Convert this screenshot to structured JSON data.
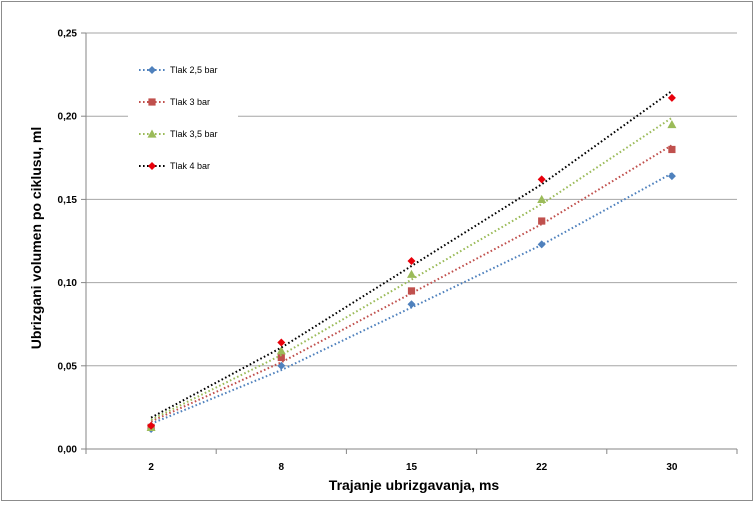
{
  "chart_data": {
    "type": "line",
    "title": "",
    "xlabel": "Trajanje ubrizgavanja, ms",
    "ylabel": "Ubrizgani volumen po ciklusu, ml",
    "categories": [
      "2",
      "8",
      "15",
      "22",
      "30"
    ],
    "x_numeric": [
      2,
      8,
      15,
      22,
      30
    ],
    "ylim": [
      0,
      0.25
    ],
    "yticks": [
      0,
      0.05,
      0.1,
      0.15,
      0.2,
      0.25
    ],
    "ytick_labels": [
      "0,00",
      "0,05",
      "0,10",
      "0,15",
      "0,20",
      "0,25"
    ],
    "grid": "horizontal",
    "legend_position": "top-left",
    "series": [
      {
        "name": "Tlak 2,5 bar",
        "color": "#4F81BD",
        "marker": "diamond",
        "values": [
          0.012,
          0.05,
          0.087,
          0.123,
          0.164
        ]
      },
      {
        "name": "Tlak 3 bar",
        "color": "#C0504D",
        "marker": "square",
        "values": [
          0.013,
          0.055,
          0.095,
          0.137,
          0.18
        ]
      },
      {
        "name": "Tlak 3,5 bar",
        "color": "#9BBB59",
        "marker": "triangle",
        "values": [
          0.013,
          0.059,
          0.105,
          0.15,
          0.195
        ]
      },
      {
        "name": "Tlak 4 bar",
        "color": "#000000",
        "marker_color": "#E8000B",
        "marker": "diamond",
        "values": [
          0.014,
          0.064,
          0.113,
          0.162,
          0.211
        ]
      }
    ]
  }
}
